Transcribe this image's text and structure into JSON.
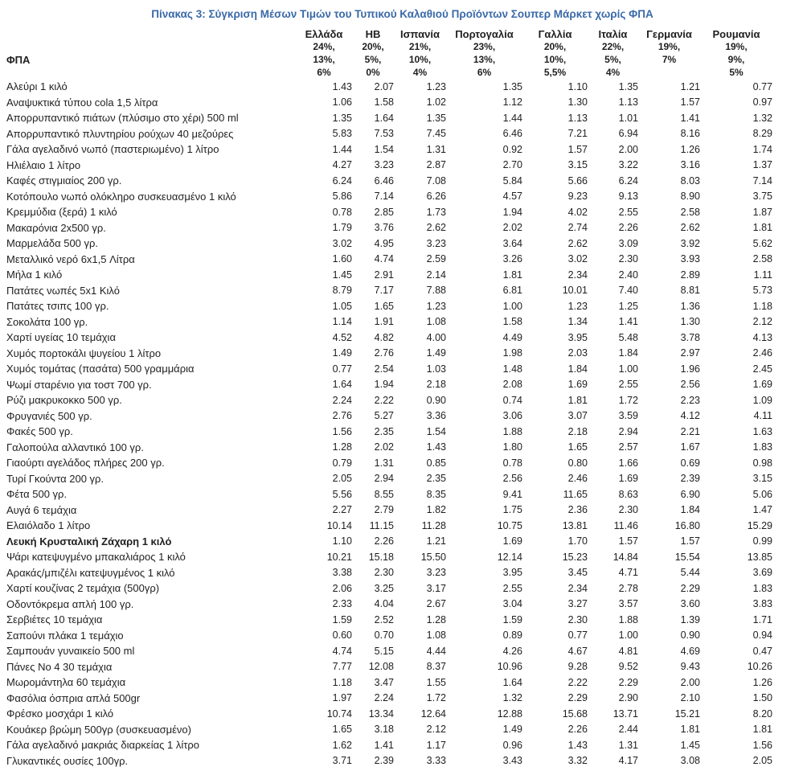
{
  "title": "Πίνακας 3: Σύγκριση Μέσων Τιμών του Τυπικού Καλαθιού Προϊόντων Σουπερ Μάρκετ χωρίς ΦΠΑ",
  "colors": {
    "title_blue": "#3a69a8",
    "body_text": "#1f1f1f",
    "background": "#ffffff"
  },
  "table": {
    "vat_row_label": "ΦΠΑ",
    "columns": [
      "Ελλάδα",
      "ΗΒ",
      "Ισπανία",
      "Πορτογαλία",
      "Γαλλία",
      "Ιταλία",
      "Γερμανία",
      "Ρουμανία"
    ],
    "vat_rates": [
      [
        "24%,",
        "13%,",
        "6%"
      ],
      [
        "20%,",
        "5%,",
        "0%"
      ],
      [
        "21%,",
        "10%,",
        "4%"
      ],
      [
        "23%,",
        "13%,",
        "6%"
      ],
      [
        "20%,",
        "10%,",
        "5,5%"
      ],
      [
        "22%,",
        "5%,",
        "4%"
      ],
      [
        "19%,",
        "7%"
      ],
      [
        "19%,",
        "9%,",
        "5%"
      ]
    ],
    "rows": [
      {
        "product": "Αλεύρι 1 κιλό",
        "bold": false,
        "values": [
          "1.43",
          "2.07",
          "1.23",
          "1.35",
          "1.10",
          "1.35",
          "1.21",
          "0.77"
        ]
      },
      {
        "product": "Αναψυκτικά τύπου cola 1,5 λίτρα",
        "bold": false,
        "values": [
          "1.06",
          "1.58",
          "1.02",
          "1.12",
          "1.30",
          "1.13",
          "1.57",
          "0.97"
        ]
      },
      {
        "product": "Απορρυπαντικό πιάτων (πλύσιμο στο χέρι) 500 ml",
        "bold": false,
        "values": [
          "1.35",
          "1.64",
          "1.35",
          "1.44",
          "1.13",
          "1.01",
          "1.41",
          "1.32"
        ]
      },
      {
        "product": "Απορρυπαντικό πλυντηρίου ρούχων 40 μεζούρες",
        "bold": false,
        "values": [
          "5.83",
          "7.53",
          "7.45",
          "6.46",
          "7.21",
          "6.94",
          "8.16",
          "8.29"
        ]
      },
      {
        "product": "Γάλα αγελαδινό νωπό (παστεριωμένο) 1 λίτρο",
        "bold": false,
        "values": [
          "1.44",
          "1.54",
          "1.31",
          "0.92",
          "1.57",
          "2.00",
          "1.26",
          "1.74"
        ]
      },
      {
        "product": "Ηλιέλαιο 1 λίτρο",
        "bold": false,
        "values": [
          "4.27",
          "3.23",
          "2.87",
          "2.70",
          "3.15",
          "3.22",
          "3.16",
          "1.37"
        ]
      },
      {
        "product": "Καφές στιγμιαίος 200 γρ.",
        "bold": false,
        "values": [
          "6.24",
          "6.46",
          "7.08",
          "5.84",
          "5.66",
          "6.24",
          "8.03",
          "7.14"
        ]
      },
      {
        "product": "Κοτόπουλο νωπό ολόκληρο συσκευασμένο 1 κιλό",
        "bold": false,
        "values": [
          "5.86",
          "7.14",
          "6.26",
          "4.57",
          "9.23",
          "9.13",
          "8.90",
          "3.75"
        ]
      },
      {
        "product": "Κρεμμύδια (ξερά) 1 κιλό",
        "bold": false,
        "values": [
          "0.78",
          "2.85",
          "1.73",
          "1.94",
          "4.02",
          "2.55",
          "2.58",
          "1.87"
        ]
      },
      {
        "product": "Μακαρόνια 2x500 γρ.",
        "bold": false,
        "values": [
          "1.79",
          "3.76",
          "2.62",
          "2.02",
          "2.74",
          "2.26",
          "2.62",
          "1.81"
        ]
      },
      {
        "product": "Μαρμελάδα 500 γρ.",
        "bold": false,
        "values": [
          "3.02",
          "4.95",
          "3.23",
          "3.64",
          "2.62",
          "3.09",
          "3.92",
          "5.62"
        ]
      },
      {
        "product": "Μεταλλικό νερό 6x1,5 Λίτρα",
        "bold": false,
        "values": [
          "1.60",
          "4.74",
          "2.59",
          "3.26",
          "3.02",
          "2.30",
          "3.93",
          "2.58"
        ]
      },
      {
        "product": "Μήλα 1 κιλό",
        "bold": false,
        "values": [
          "1.45",
          "2.91",
          "2.14",
          "1.81",
          "2.34",
          "2.40",
          "2.89",
          "1.11"
        ]
      },
      {
        "product": "Πατάτες νωπές 5x1 Κιλό",
        "bold": false,
        "values": [
          "8.79",
          "7.17",
          "7.88",
          "6.81",
          "10.01",
          "7.40",
          "8.81",
          "5.73"
        ]
      },
      {
        "product": "Πατάτες τσιπς 100 γρ.",
        "bold": false,
        "values": [
          "1.05",
          "1.65",
          "1.23",
          "1.00",
          "1.23",
          "1.25",
          "1.36",
          "1.18"
        ]
      },
      {
        "product": "Σοκολάτα 100 γρ.",
        "bold": false,
        "values": [
          "1.14",
          "1.91",
          "1.08",
          "1.58",
          "1.34",
          "1.41",
          "1.30",
          "2.12"
        ]
      },
      {
        "product": "Χαρτί υγείας 10 τεμάχια",
        "bold": false,
        "values": [
          "4.52",
          "4.82",
          "4.00",
          "4.49",
          "3.95",
          "5.48",
          "3.78",
          "4.13"
        ]
      },
      {
        "product": "Χυμός πορτοκάλι ψυγείου 1 λίτρο",
        "bold": false,
        "values": [
          "1.49",
          "2.76",
          "1.49",
          "1.98",
          "2.03",
          "1.84",
          "2.97",
          "2.46"
        ]
      },
      {
        "product": "Χυμός τομάτας (πασάτα) 500 γραμμάρια",
        "bold": false,
        "values": [
          "0.77",
          "2.54",
          "1.03",
          "1.48",
          "1.84",
          "1.00",
          "1.96",
          "2.45"
        ]
      },
      {
        "product": "Ψωμί σταρένιο για τοστ 700 γρ.",
        "bold": false,
        "values": [
          "1.64",
          "1.94",
          "2.18",
          "2.08",
          "1.69",
          "2.55",
          "2.56",
          "1.69"
        ]
      },
      {
        "product": "Ρύζι μακρυκοκκο 500 γρ.",
        "bold": false,
        "values": [
          "2.24",
          "2.22",
          "0.90",
          "0.74",
          "1.81",
          "1.72",
          "2.23",
          "1.09"
        ]
      },
      {
        "product": "Φρυγανιές 500 γρ.",
        "bold": false,
        "values": [
          "2.76",
          "5.27",
          "3.36",
          "3.06",
          "3.07",
          "3.59",
          "4.12",
          "4.11"
        ]
      },
      {
        "product": "Φακές 500 γρ.",
        "bold": false,
        "values": [
          "1.56",
          "2.35",
          "1.54",
          "1.88",
          "2.18",
          "2.94",
          "2.21",
          "1.63"
        ]
      },
      {
        "product": "Γαλοπούλα αλλαντικό 100 γρ.",
        "bold": false,
        "values": [
          "1.28",
          "2.02",
          "1.43",
          "1.80",
          "1.65",
          "2.57",
          "1.67",
          "1.83"
        ]
      },
      {
        "product": "Γιαούρτι αγελάδος πλήρες 200 γρ.",
        "bold": false,
        "values": [
          "0.79",
          "1.31",
          "0.85",
          "0.78",
          "0.80",
          "1.66",
          "0.69",
          "0.98"
        ]
      },
      {
        "product": "Τυρί Γκούντα 200 γρ.",
        "bold": false,
        "values": [
          "2.05",
          "2.94",
          "2.35",
          "2.56",
          "2.46",
          "1.69",
          "2.39",
          "3.15"
        ]
      },
      {
        "product": "Φέτα 500 γρ.",
        "bold": false,
        "values": [
          "5.56",
          "8.55",
          "8.35",
          "9.41",
          "11.65",
          "8.63",
          "6.90",
          "5.06"
        ]
      },
      {
        "product": "Αυγά 6 τεμάχια",
        "bold": false,
        "values": [
          "2.27",
          "2.79",
          "1.82",
          "1.75",
          "2.36",
          "2.30",
          "1.84",
          "1.47"
        ]
      },
      {
        "product": "Ελαιόλαδο 1 λίτρο",
        "bold": false,
        "values": [
          "10.14",
          "11.15",
          "11.28",
          "10.75",
          "13.81",
          "11.46",
          "16.80",
          "15.29"
        ]
      },
      {
        "product": "Λευκή Κρυσταλική Ζάχαρη 1 κιλό",
        "bold": true,
        "values": [
          "1.10",
          "2.26",
          "1.21",
          "1.69",
          "1.70",
          "1.57",
          "1.57",
          "0.99"
        ]
      },
      {
        "product": "Ψάρι κατεψυγμένο μπακαλιάρος 1 κιλό",
        "bold": false,
        "values": [
          "10.21",
          "15.18",
          "15.50",
          "12.14",
          "15.23",
          "14.84",
          "15.54",
          "13.85"
        ]
      },
      {
        "product": "Αρακάς/μπιζέλι κατεψυγμένος 1 κιλό",
        "bold": false,
        "values": [
          "3.38",
          "2.30",
          "3.23",
          "3.95",
          "3.45",
          "4.71",
          "5.44",
          "3.69"
        ]
      },
      {
        "product": "Χαρτί κουζίνας 2 τεμάχια (500γρ)",
        "bold": false,
        "values": [
          "2.06",
          "3.25",
          "3.17",
          "2.55",
          "2.34",
          "2.78",
          "2.29",
          "1.83"
        ]
      },
      {
        "product": "Οδοντόκρεμα απλή 100 γρ.",
        "bold": false,
        "values": [
          "2.33",
          "4.04",
          "2.67",
          "3.04",
          "3.27",
          "3.57",
          "3.60",
          "3.83"
        ]
      },
      {
        "product": "Σερβιέτες 10 τεμάχια",
        "bold": false,
        "values": [
          "1.59",
          "2.52",
          "1.28",
          "1.59",
          "2.30",
          "1.88",
          "1.39",
          "1.71"
        ]
      },
      {
        "product": "Σαπούνι  πλάκα 1 τεμάχιο",
        "bold": false,
        "values": [
          "0.60",
          "0.70",
          "1.08",
          "0.89",
          "0.77",
          "1.00",
          "0.90",
          "0.94"
        ]
      },
      {
        "product": "Σαμπουάν γυναικείο 500 ml",
        "bold": false,
        "values": [
          "4.74",
          "5.15",
          "4.44",
          "4.26",
          "4.67",
          "4.81",
          "4.69",
          "0.47"
        ]
      },
      {
        "product": "Πάνες Νο 4 30 τεμάχια",
        "bold": false,
        "values": [
          "7.77",
          "12.08",
          "8.37",
          "10.96",
          "9.28",
          "9.52",
          "9.43",
          "10.26"
        ]
      },
      {
        "product": "Μωρομάντηλα 60 τεμάχια",
        "bold": false,
        "values": [
          "1.18",
          "3.47",
          "1.55",
          "1.64",
          "2.22",
          "2.29",
          "2.00",
          "1.26"
        ]
      },
      {
        "product": "Φασόλια όσπρια απλά 500gr",
        "bold": false,
        "values": [
          "1.97",
          "2.24",
          "1.72",
          "1.32",
          "2.29",
          "2.90",
          "2.10",
          "1.50"
        ]
      },
      {
        "product": "Φρέσκο μοσχάρι 1 κιλό",
        "bold": false,
        "values": [
          "10.74",
          "13.34",
          "12.64",
          "12.88",
          "15.68",
          "13.71",
          "15.21",
          "8.20"
        ]
      },
      {
        "product": "Κουάκερ βρώμη 500γρ (συσκευασμένο)",
        "bold": false,
        "values": [
          "1.65",
          "3.18",
          "2.12",
          "1.49",
          "2.26",
          "2.44",
          "1.81",
          "1.81"
        ]
      },
      {
        "product": "Γάλα αγελαδινό μακριάς διαρκείας 1 λίτρο",
        "bold": false,
        "values": [
          "1.62",
          "1.41",
          "1.17",
          "0.96",
          "1.43",
          "1.31",
          "1.45",
          "1.56"
        ]
      },
      {
        "product": "Γλυκαντικές ουσίες 100γρ.",
        "bold": false,
        "values": [
          "3.71",
          "2.39",
          "3.33",
          "3.43",
          "3.32",
          "4.17",
          "3.08",
          "2.05"
        ]
      }
    ]
  }
}
